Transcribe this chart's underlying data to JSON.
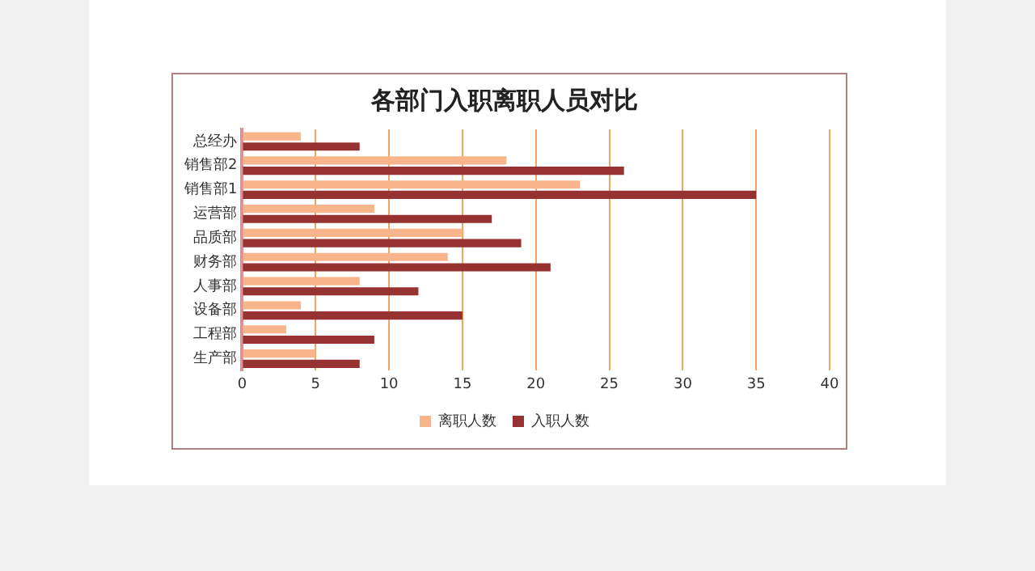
{
  "chart_data": {
    "type": "bar",
    "orientation": "horizontal",
    "title": "各部门入职离职人员对比",
    "categories": [
      "总经办",
      "销售部2",
      "销售部1",
      "运营部",
      "品质部",
      "财务部",
      "人事部",
      "设备部",
      "工程部",
      "生产部"
    ],
    "series": [
      {
        "name": "离职人数",
        "color": "#f8b58c",
        "values": [
          4,
          18,
          23,
          9,
          15,
          14,
          8,
          4,
          3,
          5
        ]
      },
      {
        "name": "入职人数",
        "color": "#963232",
        "values": [
          8,
          26,
          35,
          17,
          19,
          21,
          12,
          15,
          9,
          8
        ]
      }
    ],
    "xlim": [
      0,
      40
    ],
    "xticks": [
      0,
      5,
      10,
      15,
      20,
      25,
      30,
      35,
      40
    ],
    "grid": "x",
    "legend": "bottom"
  }
}
